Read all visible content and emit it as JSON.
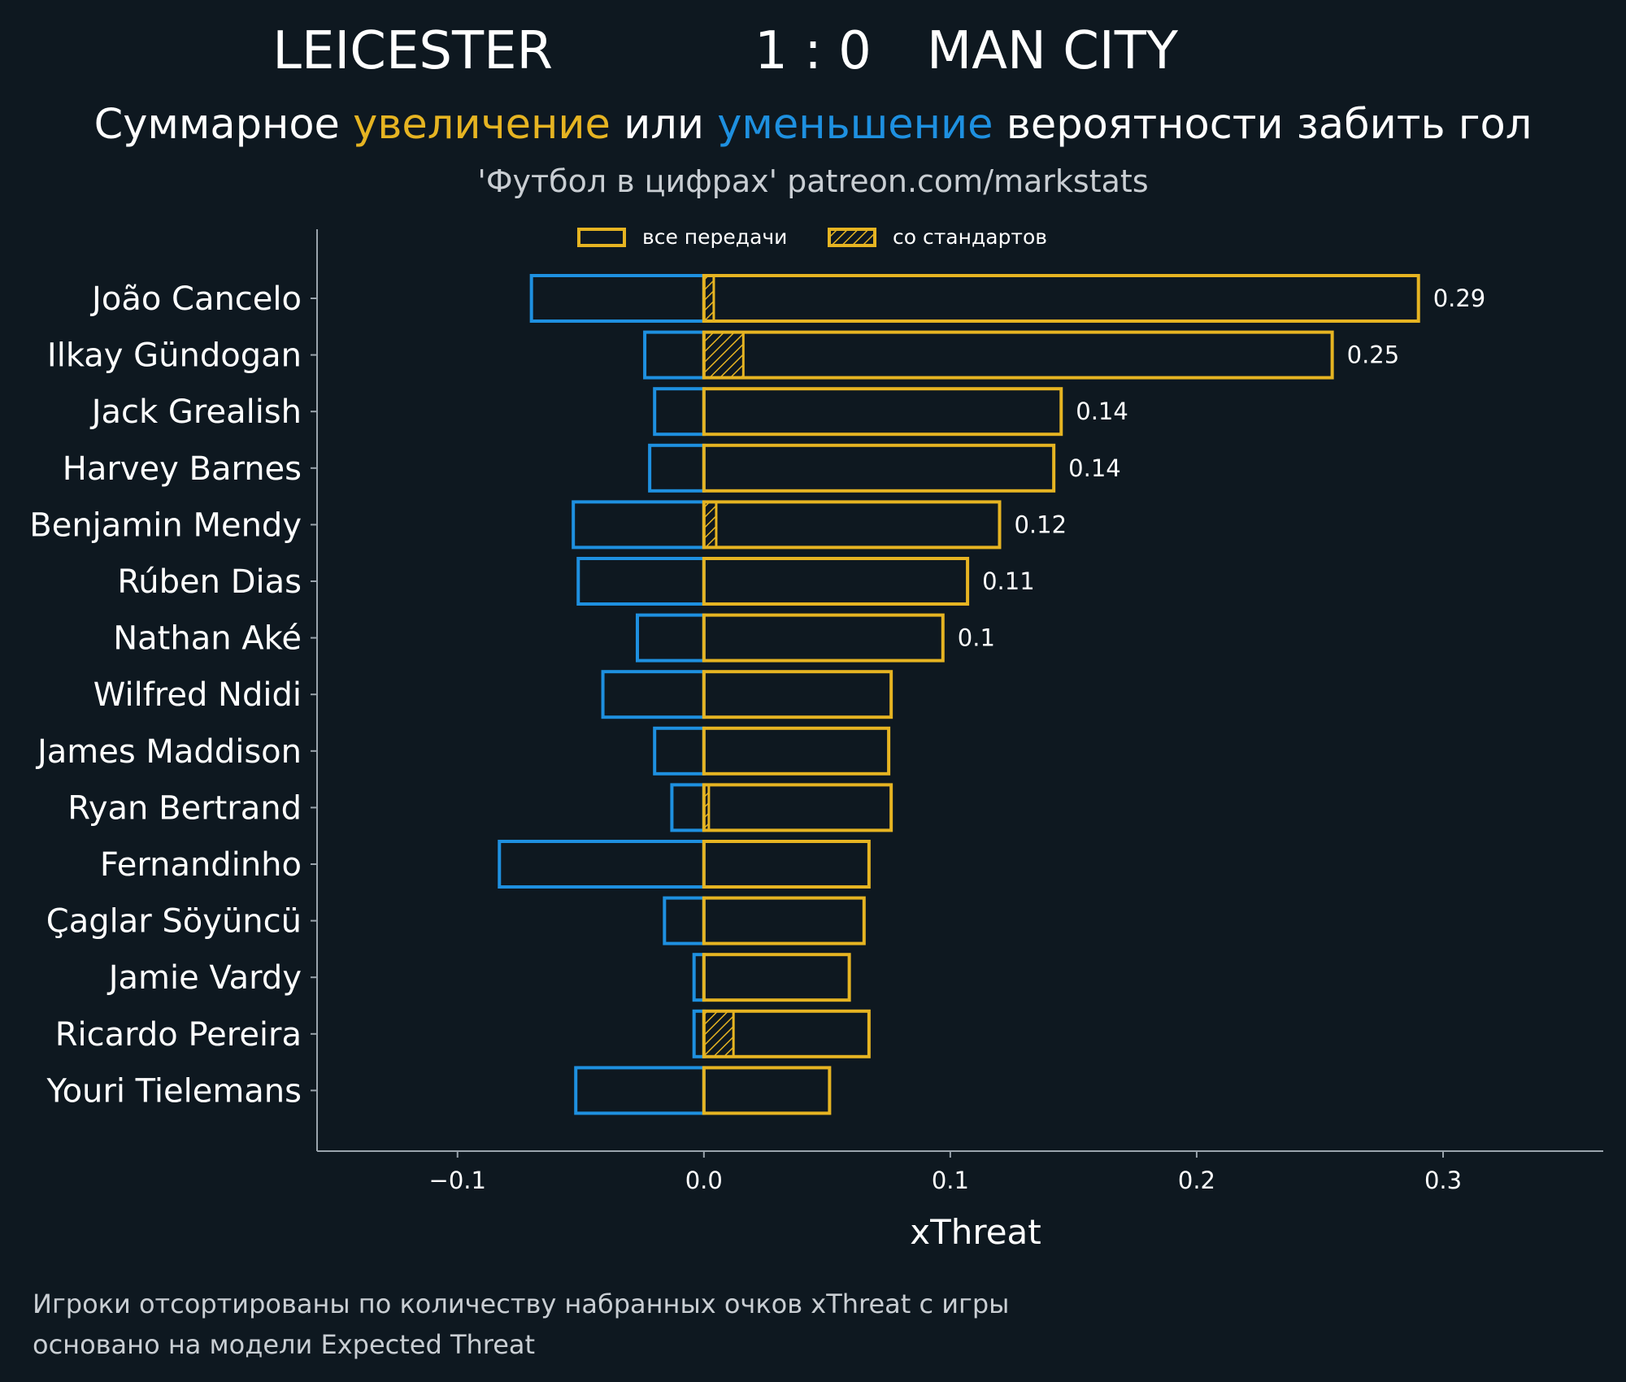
{
  "header": {
    "team_home": "LEICESTER",
    "score": "1 : 0",
    "team_away": "MAN CITY",
    "subtitle_parts": [
      "Суммарное ",
      "увеличение",
      " или ",
      "уменьшение",
      " вероятности забить гол"
    ],
    "source": "'Футбол в цифрах' patreon.com/markstats"
  },
  "legend": {
    "all_passes": "все передачи",
    "set_pieces": "со стандартов"
  },
  "footer": {
    "line1": "Игроки отсортированы по количеству набранных очков xThreat с игры",
    "line2": "основано на модели Expected Threat"
  },
  "colors": {
    "background": "#0e1820",
    "increase": "#e6b422",
    "decrease": "#1e90e0",
    "text": "#ffffff",
    "muted": "#c9ced3",
    "axis": "#9aa4ad"
  },
  "chart_data": {
    "type": "bar",
    "orientation": "horizontal",
    "xlabel": "xThreat",
    "xlim": [
      -0.157,
      0.365
    ],
    "xticks": [
      -0.1,
      0.0,
      0.1,
      0.2,
      0.3
    ],
    "xtick_labels": [
      "−0.1",
      "0.0",
      "0.1",
      "0.2",
      "0.3"
    ],
    "categories": [
      "João Cancelo",
      "Ilkay Gündogan",
      "Jack Grealish",
      "Harvey Barnes",
      "Benjamin Mendy",
      "Rúben Dias",
      "Nathan Aké",
      "Wilfred Ndidi",
      "James Maddison",
      "Ryan Bertrand",
      "Fernandinho",
      "Çaglar Söyüncü",
      "Jamie Vardy",
      "Ricardo Pereira",
      "Youri Tielemans"
    ],
    "series": [
      {
        "name": "все передачи",
        "values": [
          0.29,
          0.255,
          0.145,
          0.142,
          0.12,
          0.107,
          0.097,
          0.076,
          0.075,
          0.076,
          0.067,
          0.065,
          0.059,
          0.067,
          0.051
        ]
      },
      {
        "name": "со стандартов",
        "values": [
          0.004,
          0.016,
          0,
          0,
          0.005,
          0,
          0,
          0,
          0,
          0.002,
          0,
          0,
          0,
          0.012,
          0
        ]
      },
      {
        "values": [
          -0.07,
          -0.024,
          -0.02,
          -0.022,
          -0.053,
          -0.051,
          -0.027,
          -0.041,
          -0.02,
          -0.013,
          -0.083,
          -0.016,
          -0.004,
          -0.004,
          -0.052
        ]
      }
    ],
    "value_labels": [
      "0.29",
      "0.25",
      "0.14",
      "0.14",
      "0.12",
      "0.11",
      "0.1",
      "",
      "",
      "",
      "",
      "",
      "",
      "",
      ""
    ],
    "legend_position": "top-center",
    "grid": false
  }
}
